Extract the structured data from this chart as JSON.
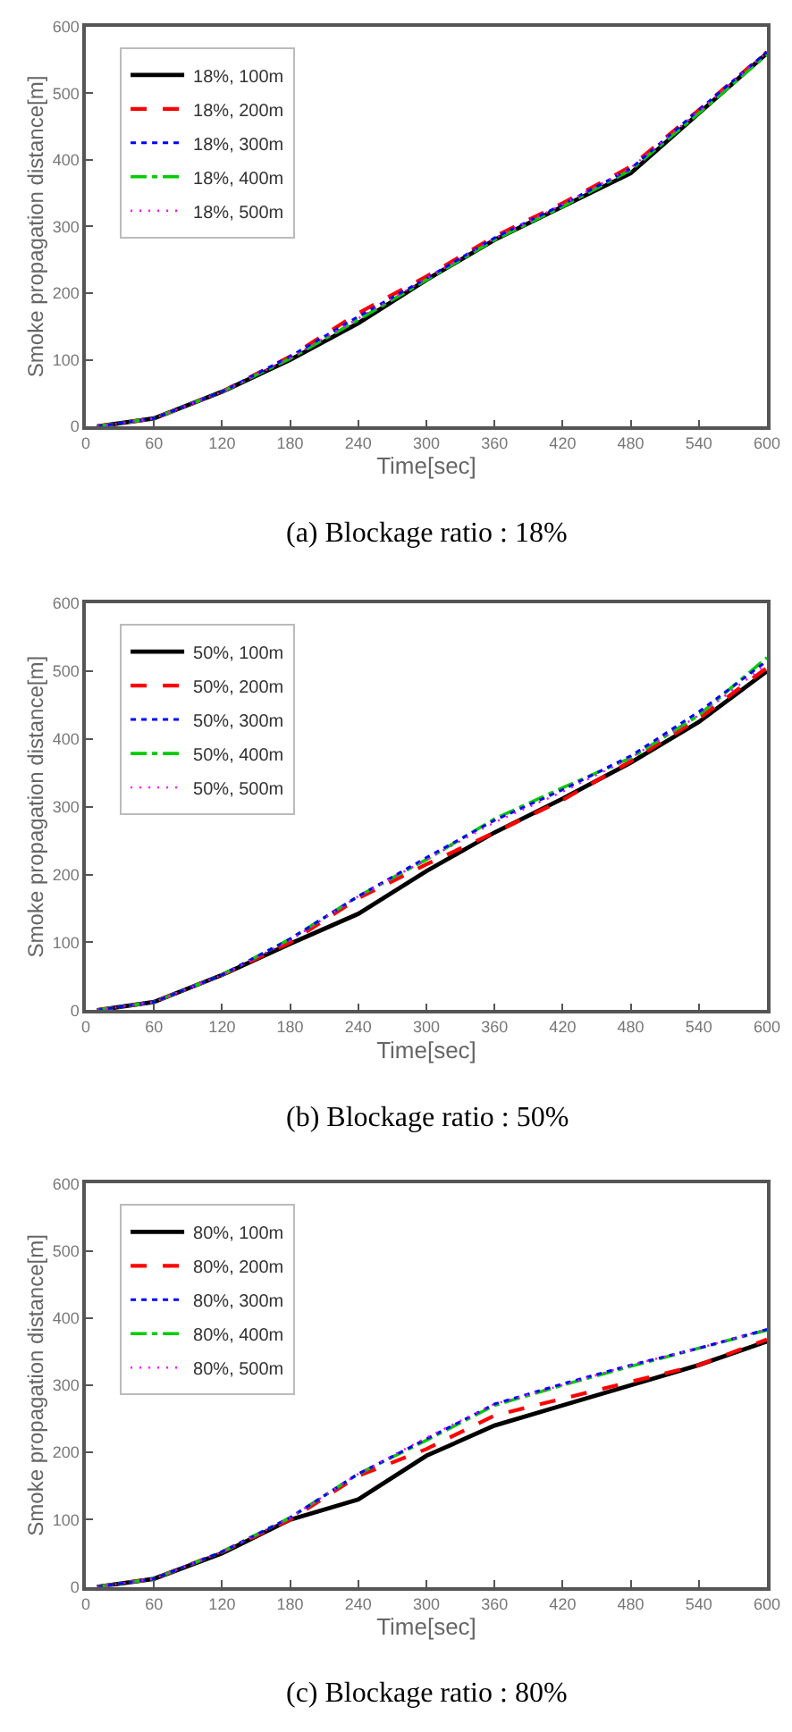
{
  "chart_data": [
    {
      "type": "line",
      "title": "(a) Blockage ratio : 18%",
      "xlabel": "Time[sec]",
      "ylabel": "Smoke propagation distance[m]",
      "x": [
        10,
        60,
        120,
        180,
        240,
        300,
        360,
        420,
        480,
        540,
        600
      ],
      "xlim": [
        0,
        600
      ],
      "xticks": [
        0,
        60,
        120,
        180,
        240,
        300,
        360,
        420,
        480,
        540,
        600
      ],
      "ylim": [
        0,
        600
      ],
      "yticks": [
        0,
        100,
        200,
        300,
        400,
        500,
        600
      ],
      "legend": "top left",
      "marker": "none",
      "series": [
        {
          "name": "18%, 100m",
          "color": "#000000",
          "line_style": "solid",
          "values": [
            0,
            12,
            52,
            100,
            155,
            220,
            280,
            330,
            380,
            470,
            560
          ]
        },
        {
          "name": "18%, 200m",
          "color": "#ff0000",
          "line_style": "dashed",
          "values": [
            0,
            12,
            52,
            105,
            170,
            225,
            285,
            335,
            390,
            475,
            562
          ]
        },
        {
          "name": "18%, 300m",
          "color": "#0000ff",
          "line_style": "dotted",
          "values": [
            0,
            12,
            52,
            105,
            165,
            222,
            283,
            333,
            387,
            475,
            562
          ]
        },
        {
          "name": "18%, 400m",
          "color": "#00cc00",
          "line_style": "dashdot",
          "values": [
            0,
            12,
            52,
            102,
            160,
            220,
            280,
            330,
            385,
            470,
            558
          ]
        },
        {
          "name": "18%, 500m",
          "color": "#ff00ff",
          "line_style": "dotted",
          "values": [
            0,
            12,
            52,
            103,
            162,
            222,
            282,
            333,
            388,
            473,
            562
          ]
        }
      ]
    },
    {
      "type": "line",
      "title": "(b) Blockage ratio : 50%",
      "xlabel": "Time[sec]",
      "ylabel": "Smoke propagation distance[m]",
      "x": [
        10,
        60,
        120,
        180,
        240,
        300,
        360,
        420,
        480,
        540,
        600
      ],
      "xlim": [
        0,
        600
      ],
      "xticks": [
        0,
        60,
        120,
        180,
        240,
        300,
        360,
        420,
        480,
        540,
        600
      ],
      "ylim": [
        0,
        600
      ],
      "yticks": [
        0,
        100,
        200,
        300,
        400,
        500,
        600
      ],
      "legend": "top left",
      "marker": "none",
      "series": [
        {
          "name": "50%, 100m",
          "color": "#000000",
          "line_style": "solid",
          "values": [
            0,
            12,
            52,
            98,
            142,
            205,
            262,
            312,
            365,
            425,
            500
          ]
        },
        {
          "name": "50%, 200m",
          "color": "#ff0000",
          "line_style": "dashed",
          "values": [
            0,
            12,
            52,
            100,
            165,
            215,
            262,
            310,
            367,
            430,
            505
          ]
        },
        {
          "name": "50%, 300m",
          "color": "#0000ff",
          "line_style": "dotted",
          "values": [
            0,
            12,
            52,
            105,
            168,
            225,
            280,
            325,
            375,
            440,
            515
          ]
        },
        {
          "name": "50%, 400m",
          "color": "#00cc00",
          "line_style": "dashdot",
          "values": [
            0,
            12,
            52,
            105,
            168,
            222,
            282,
            328,
            372,
            435,
            520
          ]
        },
        {
          "name": "50%, 500m",
          "color": "#ff00ff",
          "line_style": "dotted",
          "values": [
            0,
            12,
            52,
            103,
            168,
            222,
            277,
            322,
            372,
            435,
            510
          ]
        }
      ]
    },
    {
      "type": "line",
      "title": "(c) Blockage ratio : 80%",
      "xlabel": "Time[sec]",
      "ylabel": "Smoke propagation distance[m]",
      "x": [
        10,
        60,
        120,
        180,
        240,
        300,
        360,
        420,
        480,
        540,
        600
      ],
      "xlim": [
        0,
        600
      ],
      "xticks": [
        0,
        60,
        120,
        180,
        240,
        300,
        360,
        420,
        480,
        540,
        600
      ],
      "ylim": [
        0,
        600
      ],
      "yticks": [
        0,
        100,
        200,
        300,
        400,
        500,
        600
      ],
      "legend": "top left",
      "marker": "none",
      "series": [
        {
          "name": "80%, 100m",
          "color": "#000000",
          "line_style": "solid",
          "values": [
            0,
            12,
            50,
            100,
            130,
            195,
            240,
            270,
            300,
            330,
            365
          ]
        },
        {
          "name": "80%, 200m",
          "color": "#ff0000",
          "line_style": "dashed",
          "values": [
            0,
            12,
            52,
            100,
            165,
            205,
            255,
            280,
            305,
            330,
            368
          ]
        },
        {
          "name": "80%, 300m",
          "color": "#0000ff",
          "line_style": "dotted",
          "values": [
            0,
            12,
            52,
            103,
            168,
            220,
            272,
            302,
            330,
            355,
            383
          ]
        },
        {
          "name": "80%, 400m",
          "color": "#00cc00",
          "line_style": "dashdot",
          "values": [
            0,
            12,
            52,
            103,
            168,
            218,
            270,
            300,
            328,
            355,
            382
          ]
        },
        {
          "name": "80%, 500m",
          "color": "#ff00ff",
          "line_style": "dotted",
          "values": [
            0,
            12,
            52,
            103,
            168,
            222,
            272,
            300,
            330,
            355,
            383
          ]
        }
      ]
    }
  ]
}
